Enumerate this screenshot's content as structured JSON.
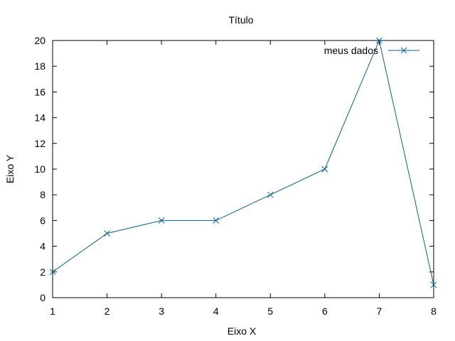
{
  "chart_data": {
    "type": "line",
    "title": "Título",
    "xlabel": "Eixo X",
    "ylabel": "Eixo Y",
    "xlim": [
      1,
      8
    ],
    "ylim": [
      0,
      20
    ],
    "x_ticks": [
      1,
      2,
      3,
      4,
      5,
      6,
      7,
      8
    ],
    "y_ticks": [
      0,
      2,
      4,
      6,
      8,
      10,
      12,
      14,
      16,
      18,
      20
    ],
    "grid": false,
    "legend_position": "top-right",
    "marker": "x-cross",
    "series": [
      {
        "name": "meus dados",
        "color": "#0a5f8c",
        "x": [
          1,
          2,
          3,
          4,
          5,
          6,
          7,
          8
        ],
        "y": [
          2,
          5,
          6,
          6,
          8,
          10,
          20,
          1
        ]
      }
    ]
  }
}
